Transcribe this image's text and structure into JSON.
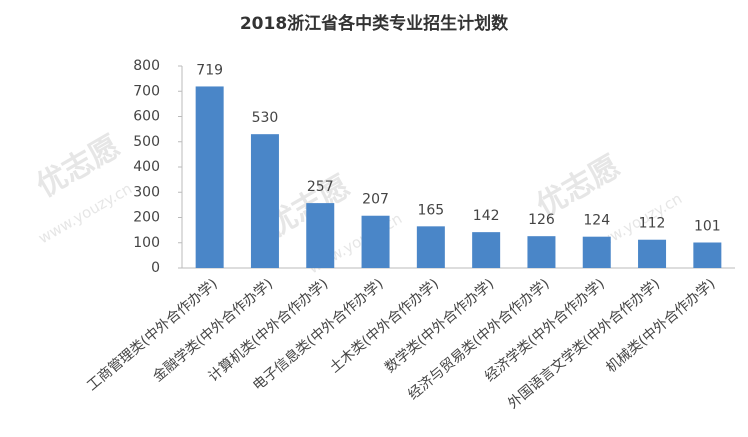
{
  "chart_data": {
    "type": "bar",
    "title": "2018浙江省各中类专业招生计划数",
    "categories": [
      "工商管理类(中外合作办学)",
      "金融学类(中外合作办学)",
      "计算机类(中外合作办学)",
      "电子信息类(中外合作办学)",
      "土木类(中外合作办学)",
      "数学类(中外合作办学)",
      "经济与贸易类(中外合作办学)",
      "经济学类(中外合作办学)",
      "外国语言文学类(中外合作办学)",
      "机械类(中外合作办学)"
    ],
    "values": [
      719,
      530,
      257,
      207,
      165,
      142,
      126,
      124,
      112,
      101
    ],
    "color": "#4a86c8",
    "ylim": [
      0,
      800
    ],
    "yticks": [
      0,
      100,
      200,
      300,
      400,
      500,
      600,
      700,
      800
    ],
    "grid": false,
    "watermark": "优志愿",
    "watermark_url": "www.youzy.cn"
  }
}
